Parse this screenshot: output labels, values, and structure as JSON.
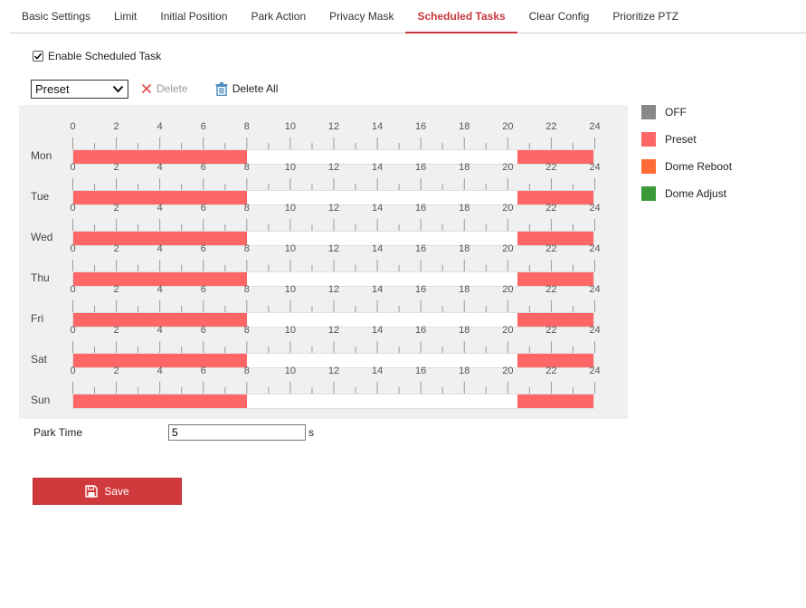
{
  "tabs": [
    {
      "label": "Basic Settings",
      "active": false
    },
    {
      "label": "Limit",
      "active": false
    },
    {
      "label": "Initial Position",
      "active": false
    },
    {
      "label": "Park Action",
      "active": false
    },
    {
      "label": "Privacy Mask",
      "active": false
    },
    {
      "label": "Scheduled Tasks",
      "active": true
    },
    {
      "label": "Clear Config",
      "active": false
    },
    {
      "label": "Prioritize PTZ",
      "active": false
    }
  ],
  "enable": {
    "label": "Enable Scheduled Task",
    "checked": true
  },
  "toolbar": {
    "task_select_value": "Preset",
    "delete_label": "Delete",
    "delete_all_label": "Delete All"
  },
  "schedule": {
    "hour_ticks": [
      "0",
      "2",
      "4",
      "6",
      "8",
      "10",
      "12",
      "14",
      "16",
      "18",
      "20",
      "22",
      "24"
    ],
    "days": [
      {
        "label": "Mon",
        "segments": [
          {
            "start": 0,
            "end": 8,
            "task": "Preset"
          },
          {
            "start": 20.5,
            "end": 24,
            "task": "Preset"
          }
        ]
      },
      {
        "label": "Tue",
        "segments": [
          {
            "start": 0,
            "end": 8,
            "task": "Preset"
          },
          {
            "start": 20.5,
            "end": 24,
            "task": "Preset"
          }
        ]
      },
      {
        "label": "Wed",
        "segments": [
          {
            "start": 0,
            "end": 8,
            "task": "Preset"
          },
          {
            "start": 20.5,
            "end": 24,
            "task": "Preset"
          }
        ]
      },
      {
        "label": "Thu",
        "segments": [
          {
            "start": 0,
            "end": 8,
            "task": "Preset"
          },
          {
            "start": 20.5,
            "end": 24,
            "task": "Preset"
          }
        ]
      },
      {
        "label": "Fri",
        "segments": [
          {
            "start": 0,
            "end": 8,
            "task": "Preset"
          },
          {
            "start": 20.5,
            "end": 24,
            "task": "Preset"
          }
        ]
      },
      {
        "label": "Sat",
        "segments": [
          {
            "start": 0,
            "end": 8,
            "task": "Preset"
          },
          {
            "start": 20.5,
            "end": 24,
            "task": "Preset"
          }
        ]
      },
      {
        "label": "Sun",
        "segments": [
          {
            "start": 0,
            "end": 8,
            "task": "Preset"
          },
          {
            "start": 20.5,
            "end": 24,
            "task": "Preset"
          }
        ]
      }
    ]
  },
  "legend": [
    {
      "label": "OFF",
      "color": "#888888"
    },
    {
      "label": "Preset",
      "color": "#ff6666"
    },
    {
      "label": "Dome Reboot",
      "color": "#ff6b35"
    },
    {
      "label": "Dome Adjust",
      "color": "#3a9a3a"
    }
  ],
  "park_time": {
    "label": "Park Time",
    "value": "5",
    "unit": "s"
  },
  "save_label": "Save",
  "colors": {
    "accent": "#c8373b",
    "save_bg": "#d13a3d"
  },
  "icons": {
    "delete": "x-icon",
    "delete_all": "trash-icon",
    "save": "floppy-disk-icon"
  }
}
